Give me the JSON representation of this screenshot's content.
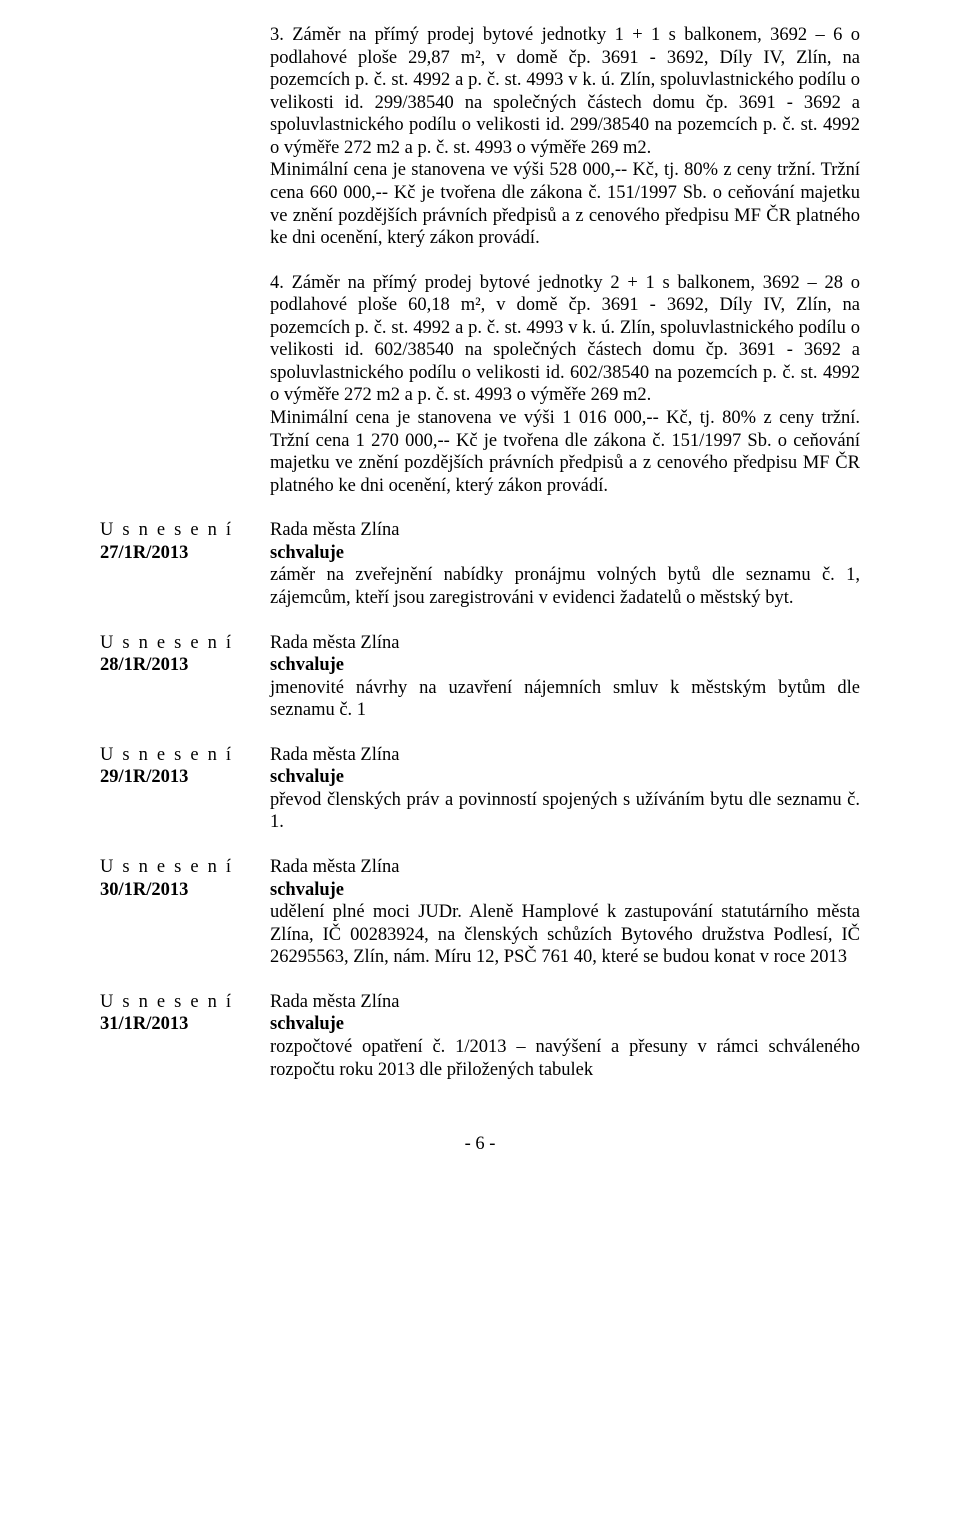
{
  "top_paragraphs": [
    "3. Záměr na přímý prodej bytové jednotky 1 + 1 s balkonem,   3692 – 6 o podlahové ploše 29,87 m², v domě čp.  3691 - 3692,   Díly IV, Zlín, na pozemcích p. č. st. 4992 a p. č. st. 4993 v k. ú. Zlín, spoluvlastnického podílu o velikosti id. 299/38540 na společných částech domu čp. 3691 - 3692 a spoluvlastnického podílu o velikosti id. 299/38540 na pozemcích p. č. st. 4992   o výměře 272 m2 a p. č. st. 4993 o výměře 269 m2.\nMinimální cena je stanovena ve výši 528 000,-- Kč, tj. 80% z ceny tržní. Tržní cena 660 000,-- Kč je tvořena dle zákona č. 151/1997 Sb. o ceňování majetku ve znění pozdějších právních předpisů a z cenového předpisu MF ČR platného ke dni ocenění, který zákon provádí.",
    "4. Záměr na přímý prodej bytové jednotky 2 + 1 s balkonem,  3692 – 28 o podlahové ploše 60,18 m², v domě čp. 3691 - 3692,  Díly IV, Zlín, na pozemcích p. č. st. 4992 a p. č. st. 4993 v k. ú. Zlín, spoluvlastnického podílu o velikosti id. 602/38540 na společných částech domu čp. 3691 - 3692 a spoluvlastnického podílu o velikosti id. 602/38540 na pozemcích p. č. st. 4992 o výměře 272 m2 a p. č. st. 4993 o výměře 269 m2.\nMinimální cena je stanovena ve výši 1 016 000,-- Kč, tj. 80% z ceny tržní. Tržní cena 1 270 000,-- Kč je tvořena dle zákona č. 151/1997 Sb. o ceňování majetku ve znění pozdějších právních předpisů a z cenového předpisu MF ČR platného ke dni ocenění, který zákon provádí."
  ],
  "resolutions": [
    {
      "left": {
        "line1": "U s n e s e n í",
        "line2": "27/1R/2013"
      },
      "right": {
        "line1": "Rada města Zlína",
        "line2": "schvaluje",
        "body": "záměr na zveřejnění nabídky pronájmu  volných bytů dle seznamu č. 1, zájemcům, kteří jsou zaregistrováni v evidenci žadatelů o městský byt."
      }
    },
    {
      "left": {
        "line1": "U s n e s e n í",
        "line2": "28/1R/2013"
      },
      "right": {
        "line1": "Rada města Zlína",
        "line2": "schvaluje",
        "body": "jmenovité návrhy na uzavření nájemních smluv k městským bytům dle seznamu č. 1"
      }
    },
    {
      "left": {
        "line1": "U s n e s e n í",
        "line2": "29/1R/2013"
      },
      "right": {
        "line1": "Rada města Zlína",
        "line2": "schvaluje",
        "body": "převod členských práv a povinností spojených s užíváním bytu dle seznamu č. 1."
      }
    },
    {
      "left": {
        "line1": "U s n e s e n í",
        "line2": "30/1R/2013"
      },
      "right": {
        "line1": "Rada města Zlína",
        "line2": "schvaluje",
        "body": "udělení plné moci JUDr. Aleně Hamplové k zastupování statutárního města Zlína, IČ 00283924, na členských schůzích Bytového družstva Podlesí, IČ 26295563, Zlín, nám. Míru 12, PSČ 761 40, které se budou konat v roce 2013"
      }
    },
    {
      "left": {
        "line1": "U s n e s e n í",
        "line2": "31/1R/2013"
      },
      "right": {
        "line1": "Rada města Zlína",
        "line2": "schvaluje",
        "body": "rozpočtové opatření č. 1/2013 – navýšení a přesuny v rámci schváleného rozpočtu roku 2013 dle přiložených tabulek"
      }
    }
  ],
  "page_number": "- 6 -"
}
